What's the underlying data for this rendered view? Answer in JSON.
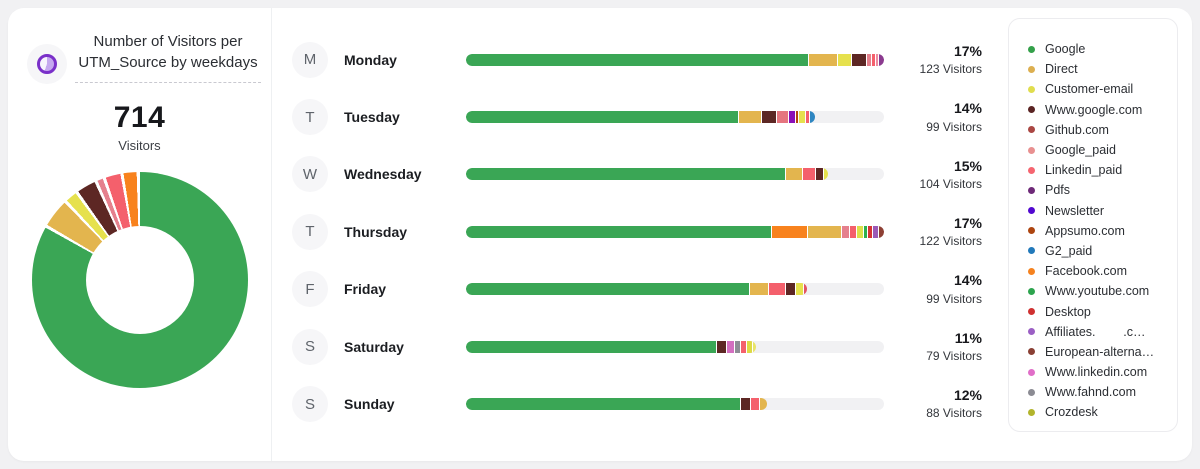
{
  "panel": {
    "title": "Number of Visitors per UTM_Source by weekdays",
    "total": "714",
    "total_label": "Visitors"
  },
  "colors": {
    "accent_purple": "#7a30c9",
    "track_gray": "#f1f1f3",
    "card_bg": "#ffffff",
    "page_bg": "#f1f1f3"
  },
  "donut": {
    "gap_deg": 1.7,
    "segments": [
      {
        "name": "Google",
        "color": "#3aa655",
        "deg": 299
      },
      {
        "name": "Direct",
        "color": "#e3b54e",
        "deg": 15
      },
      {
        "name": "Customer-email",
        "color": "#e6e14d",
        "deg": 6
      },
      {
        "name": "Www.google.com",
        "color": "#5d2724",
        "deg": 10
      },
      {
        "name": "Google_paid",
        "color": "#e5808d",
        "deg": 3
      },
      {
        "name": "Linkedin_paid",
        "color": "#f4606c",
        "deg": 8
      },
      {
        "name": "Facebook.com",
        "color": "#f8821d",
        "deg": 7
      }
    ]
  },
  "weekdays": [
    {
      "badge": "M",
      "day": "Monday",
      "pct": "17%",
      "visitors": "123 Visitors",
      "segments": [
        {
          "color": "#3aa655",
          "w": 81.8
        },
        {
          "color": "#e3b54e",
          "w": 6.9
        },
        {
          "color": "#e6e14d",
          "w": 3.3
        },
        {
          "color": "#5d2724",
          "w": 3.8
        },
        {
          "color": "#e5808d",
          "w": 1.0
        },
        {
          "color": "#f4606c",
          "w": 1.0
        },
        {
          "color": "#ef8aa0",
          "w": 0.7
        },
        {
          "color": "#8b3a8f",
          "w": 1.5
        }
      ]
    },
    {
      "badge": "T",
      "day": "Tuesday",
      "pct": "14%",
      "visitors": "99 Visitors",
      "segments": [
        {
          "color": "#3aa655",
          "w": 65.0
        },
        {
          "color": "#e3b54e",
          "w": 5.5
        },
        {
          "color": "#5d2724",
          "w": 3.6
        },
        {
          "color": "#e5757f",
          "w": 2.9
        },
        {
          "color": "#8a10b8",
          "w": 1.7
        },
        {
          "color": "#b5450f",
          "w": 0.7
        },
        {
          "color": "#e6e14d",
          "w": 1.7
        },
        {
          "color": "#f4606c",
          "w": 1.0
        },
        {
          "color": "#2e86c1",
          "w": 1.4
        }
      ]
    },
    {
      "badge": "W",
      "day": "Wednesday",
      "pct": "15%",
      "visitors": "104 Visitors",
      "segments": [
        {
          "color": "#3aa655",
          "w": 76.3
        },
        {
          "color": "#e3b54e",
          "w": 4.1
        },
        {
          "color": "#f4606c",
          "w": 3.1
        },
        {
          "color": "#5d2724",
          "w": 1.9
        },
        {
          "color": "#e6e14d",
          "w": 1.2
        }
      ]
    },
    {
      "badge": "T",
      "day": "Thursday",
      "pct": "17%",
      "visitors": "122 Visitors",
      "segments": [
        {
          "color": "#3aa655",
          "w": 73.0
        },
        {
          "color": "#f8821d",
          "w": 8.6
        },
        {
          "color": "#e3b54e",
          "w": 8.1
        },
        {
          "color": "#e5808d",
          "w": 1.9
        },
        {
          "color": "#f4606c",
          "w": 1.7
        },
        {
          "color": "#dce04a",
          "w": 1.7
        },
        {
          "color": "#2eaf4e",
          "w": 1.0
        },
        {
          "color": "#d63333",
          "w": 1.2
        },
        {
          "color": "#9b59b6",
          "w": 1.4
        },
        {
          "color": "#8e4034",
          "w": 1.4
        }
      ]
    },
    {
      "badge": "F",
      "day": "Friday",
      "pct": "14%",
      "visitors": "99 Visitors",
      "segments": [
        {
          "color": "#3aa655",
          "w": 67.7
        },
        {
          "color": "#e3b54e",
          "w": 4.5
        },
        {
          "color": "#f4606c",
          "w": 4.1
        },
        {
          "color": "#5d2724",
          "w": 2.4
        },
        {
          "color": "#e6e14d",
          "w": 1.9
        },
        {
          "color": "#e25563",
          "w": 1.0
        }
      ]
    },
    {
      "badge": "S",
      "day": "Saturday",
      "pct": "11%",
      "visitors": "79 Visitors",
      "segments": [
        {
          "color": "#3aa655",
          "w": 59.7
        },
        {
          "color": "#5d2724",
          "w": 2.6
        },
        {
          "color": "#d36fc0",
          "w": 1.9
        },
        {
          "color": "#8e8e96",
          "w": 1.4
        },
        {
          "color": "#f4606c",
          "w": 1.4
        },
        {
          "color": "#ddd945",
          "w": 1.4
        },
        {
          "color": "#e8e468",
          "w": 1.0
        }
      ]
    },
    {
      "badge": "S",
      "day": "Sunday",
      "pct": "12%",
      "visitors": "88 Visitors",
      "segments": [
        {
          "color": "#3aa655",
          "w": 65.5
        },
        {
          "color": "#5d2724",
          "w": 2.4
        },
        {
          "color": "#f4606c",
          "w": 2.2
        },
        {
          "color": "#e3b54e",
          "w": 1.9
        }
      ]
    }
  ],
  "legend": {
    "items": [
      {
        "label": "Google",
        "color": "#34a04a"
      },
      {
        "label": "Direct",
        "color": "#dcaf50"
      },
      {
        "label": "Customer-email",
        "color": "#e0dd4e"
      },
      {
        "label": "Www.google.com",
        "color": "#5a2423"
      },
      {
        "label": "Github.com",
        "color": "#aa4743"
      },
      {
        "label": "Google_paid",
        "color": "#e89090"
      },
      {
        "label": "Linkedin_paid",
        "color": "#f56570"
      },
      {
        "label": "Pdfs",
        "color": "#6e2a78"
      },
      {
        "label": "Newsletter",
        "color": "#5208d0"
      },
      {
        "label": "Appsumo.com",
        "color": "#ad4510"
      },
      {
        "label": "G2_paid",
        "color": "#2279ba"
      },
      {
        "label": "Facebook.com",
        "color": "#f5821f"
      },
      {
        "label": "Www.youtube.com",
        "color": "#2da44e"
      },
      {
        "label": "Desktop",
        "color": "#cf3131"
      },
      {
        "label": "Affiliates.        .c…",
        "color": "#9b5fc4"
      },
      {
        "label": "European-alterna…",
        "color": "#8a4034"
      },
      {
        "label": "Www.linkedin.com",
        "color": "#e06ec8"
      },
      {
        "label": "Www.fahnd.com",
        "color": "#8b8b93"
      },
      {
        "label": "Crozdesk",
        "color": "#b2b42c"
      }
    ]
  },
  "chart_data": [
    {
      "type": "bar",
      "orientation": "horizontal",
      "title": "Number of Visitors per UTM_Source by weekdays",
      "categories": [
        "Monday",
        "Tuesday",
        "Wednesday",
        "Thursday",
        "Friday",
        "Saturday",
        "Sunday"
      ],
      "values": [
        123,
        99,
        104,
        122,
        99,
        79,
        88
      ],
      "percentages": [
        17,
        14,
        15,
        17,
        14,
        11,
        12
      ],
      "total": 714,
      "stacked_by": "UTM_Source",
      "legend_position": "right",
      "legend_entries": [
        "Google",
        "Direct",
        "Customer-email",
        "Www.google.com",
        "Github.com",
        "Google_paid",
        "Linkedin_paid",
        "Pdfs",
        "Newsletter",
        "Appsumo.com",
        "G2_paid",
        "Facebook.com",
        "Www.youtube.com",
        "Desktop",
        "Affiliates.        .c…",
        "European-alterna…",
        "Www.linkedin.com",
        "Www.fahnd.com",
        "Crozdesk"
      ]
    },
    {
      "type": "pie",
      "subtype": "donut",
      "title": "Visitors by UTM_Source (all weekdays)",
      "total_label": "714 Visitors",
      "labels": [
        "Google",
        "Direct",
        "Customer-email",
        "Www.google.com",
        "Google_paid",
        "Linkedin_paid",
        "Facebook.com"
      ],
      "values_pct": [
        83.1,
        4.2,
        1.7,
        2.8,
        0.8,
        2.2,
        1.9
      ]
    }
  ]
}
